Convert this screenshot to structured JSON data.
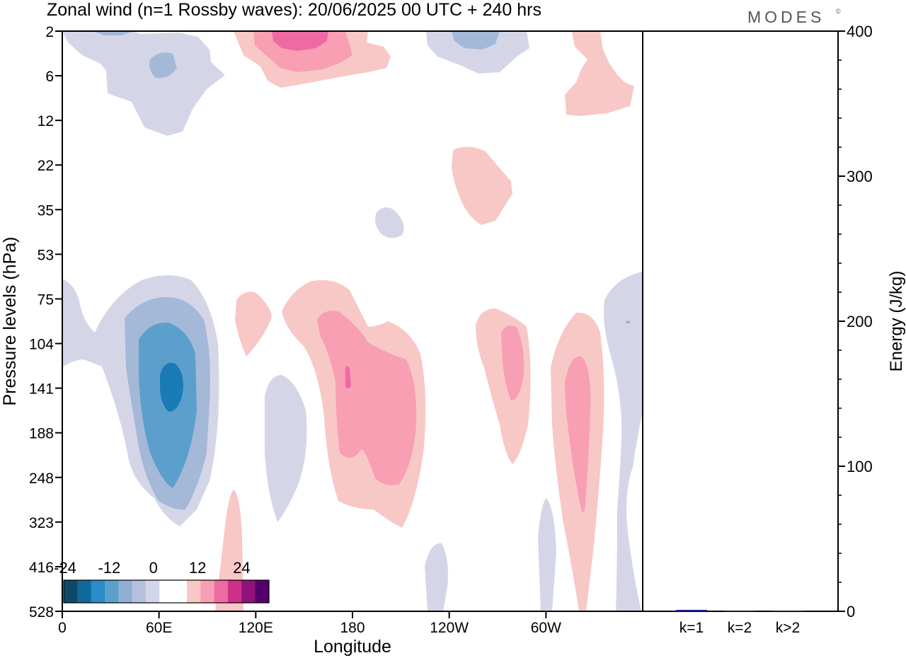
{
  "title": "Zonal wind (n=1 Rossby waves):  20/06/2025  00 UTC  + 240 hrs",
  "logo": "MODES",
  "logo_mark": "©",
  "chart_data": [
    {
      "type": "heatmap",
      "title": "Zonal wind (n=1 Rossby waves):  20/06/2025  00 UTC  + 240 hrs",
      "xlabel": "Longitude",
      "ylabel": "Pressure levels (hPa)",
      "x_ticks": [
        "0",
        "60E",
        "120E",
        "180",
        "120W",
        "60W"
      ],
      "x_tick_values": [
        0,
        60,
        120,
        180,
        240,
        300
      ],
      "xlim": [
        0,
        360
      ],
      "y_ticks": [
        "2",
        "6",
        "12",
        "22",
        "35",
        "53",
        "75",
        "104",
        "141",
        "188",
        "248",
        "323",
        "416",
        "528"
      ],
      "colorbar": {
        "labels": [
          "-24",
          "-12",
          "0",
          "12",
          "24"
        ],
        "colors": [
          "#0d4a66",
          "#0f6a9a",
          "#2a8cc4",
          "#5d9fcc",
          "#8fb0d4",
          "#b5c2de",
          "#d4d6e8",
          "#ffffff",
          "#ffffff",
          "#f8c8c6",
          "#f89fb4",
          "#ef6aa2",
          "#cd2f8a",
          "#8e1479",
          "#55006f"
        ]
      },
      "features": [
        {
          "sign": "negative",
          "level": -18,
          "lon": 67,
          "level_hpa": 141
        },
        {
          "sign": "positive",
          "level": 12,
          "lon": 192,
          "level_hpa": 165
        },
        {
          "sign": "positive",
          "level": 12,
          "lon": 323,
          "level_hpa": 188
        },
        {
          "sign": "positive",
          "level": 12,
          "lon": 280,
          "level_hpa": 135
        },
        {
          "sign": "positive",
          "level": 16,
          "lon": 148,
          "level_hpa": 2
        },
        {
          "sign": "negative",
          "level": -6,
          "lon": 245,
          "level_hpa": 3
        }
      ]
    },
    {
      "type": "bar",
      "ylabel": "Energy (J/kg)",
      "ylim": [
        0,
        400
      ],
      "y_ticks": [
        "0",
        "100",
        "200",
        "300",
        "400"
      ],
      "categories": [
        "k=1",
        "k=2",
        "k>2"
      ],
      "values": [
        1.0,
        0.3,
        0.5
      ],
      "colors": [
        "#1f1f8a",
        "#333333",
        "#333333"
      ]
    }
  ]
}
